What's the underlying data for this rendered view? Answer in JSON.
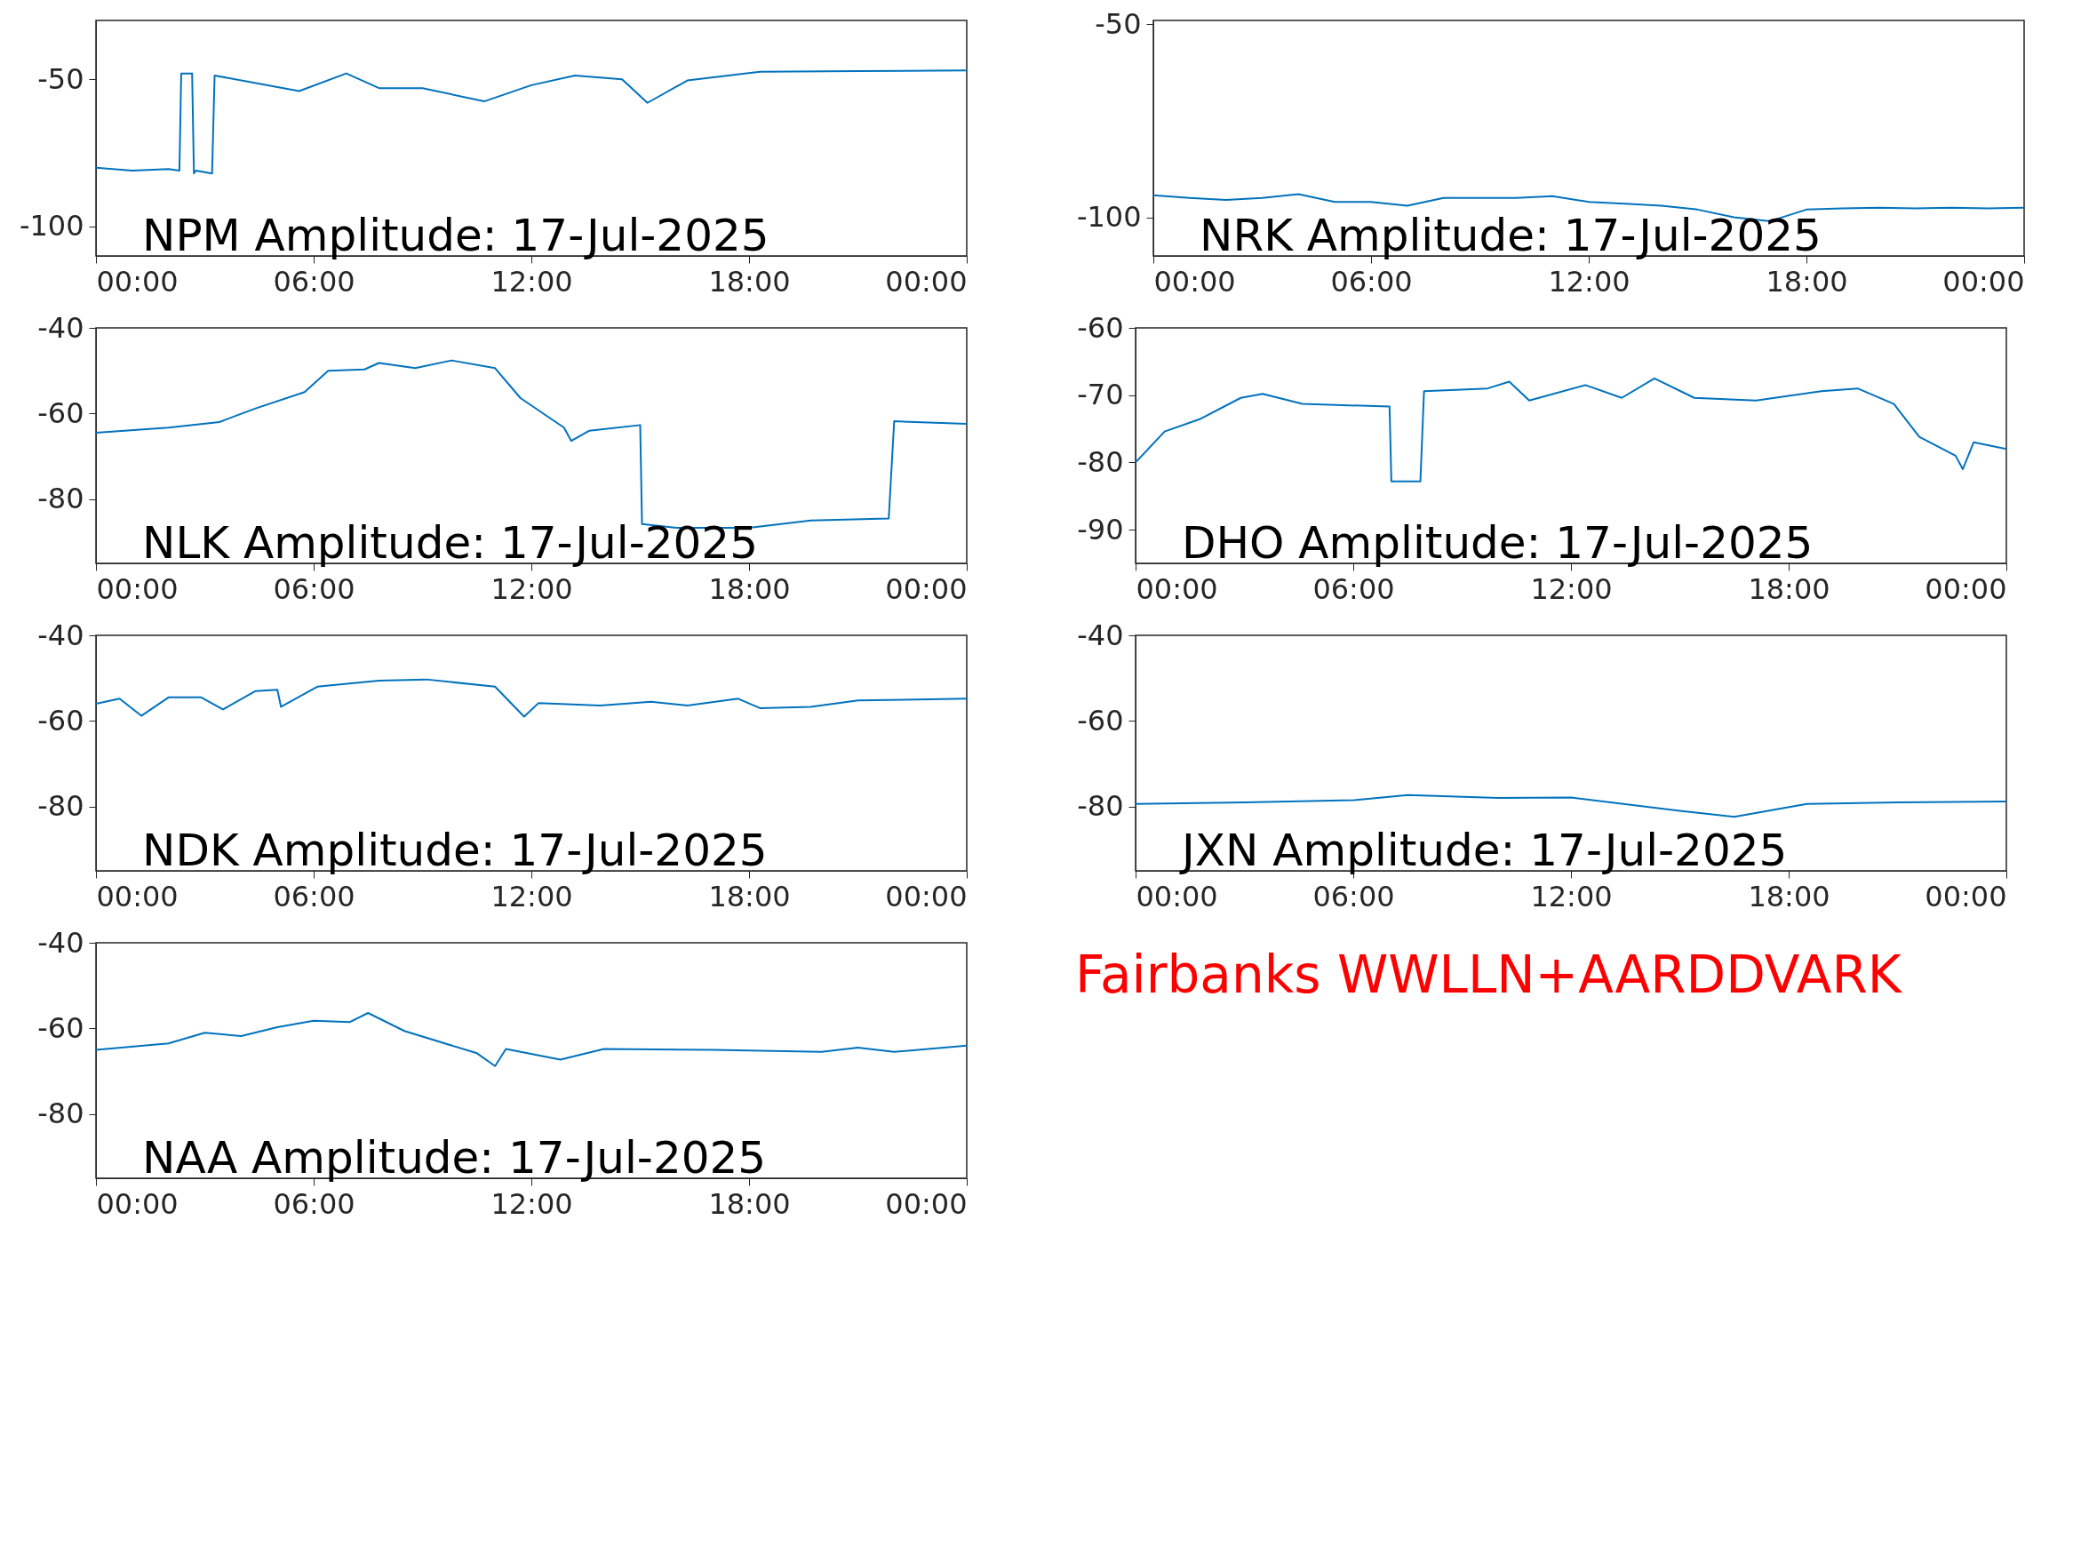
{
  "chart_data": [
    {
      "type": "line",
      "title": "NPM Amplitude: 17-Jul-2025",
      "x": [
        0,
        1,
        2,
        2.3,
        2.35,
        2.65,
        2.7,
        2.75,
        3.2,
        3.27,
        5.6,
        6.9,
        7.8,
        9,
        10.7,
        12,
        13.2,
        14.5,
        15.2,
        16.3,
        18.3,
        21,
        24
      ],
      "xlim": [
        0,
        24
      ],
      "xticks": [
        {
          "value": 0,
          "label": "00:00"
        },
        {
          "value": 6,
          "label": "06:00"
        },
        {
          "value": 12,
          "label": "12:00"
        },
        {
          "value": 18,
          "label": "18:00"
        },
        {
          "value": 24,
          "label": "00:00"
        }
      ],
      "ylim": [
        -110,
        -30
      ],
      "yticks": [
        -100,
        -50
      ],
      "series": [
        {
          "color": "#0072bd",
          "values": [
            -80,
            -81,
            -80.5,
            -81,
            -48,
            -48,
            -82,
            -81,
            -82,
            -48.7,
            -54,
            -48,
            -53,
            -53,
            -57.5,
            -52,
            -48.7,
            -50,
            -58,
            -50.4,
            -47.4,
            -47.2,
            -47
          ]
        }
      ]
    },
    {
      "type": "line",
      "title": "NRK Amplitude: 17-Jul-2025",
      "x": [
        0,
        1,
        2,
        3,
        4,
        5,
        6,
        7,
        8,
        9,
        10,
        11,
        12,
        13,
        14,
        15,
        16,
        17,
        18,
        19,
        20,
        21,
        22,
        23,
        24
      ],
      "xlim": [
        0,
        24
      ],
      "xticks": [
        {
          "value": 0,
          "label": "00:00"
        },
        {
          "value": 6,
          "label": "06:00"
        },
        {
          "value": 12,
          "label": "12:00"
        },
        {
          "value": 18,
          "label": "18:00"
        },
        {
          "value": 24,
          "label": "00:00"
        }
      ],
      "ylim": [
        -110,
        -49
      ],
      "yticks": [
        -100,
        -50
      ],
      "series": [
        {
          "color": "#0072bd",
          "values": [
            -94.3,
            -95,
            -95.5,
            -95,
            -94,
            -96,
            -96,
            -97,
            -95,
            -95,
            -95,
            -94.5,
            -96,
            -96.5,
            -97,
            -98,
            -100,
            -101,
            -98,
            -97.7,
            -97.5,
            -97.7,
            -97.5,
            -97.7,
            -97.5
          ]
        }
      ]
    },
    {
      "type": "line",
      "title": "NLK Amplitude: 17-Jul-2025",
      "x": [
        0,
        2,
        3.4,
        4.4,
        5.75,
        6.4,
        7.4,
        7.8,
        8.8,
        9.8,
        11,
        11.7,
        12.9,
        13.1,
        13.6,
        15,
        15.05,
        16,
        18,
        19.7,
        21.85,
        22,
        24
      ],
      "xlim": [
        0,
        24
      ],
      "xticks": [
        {
          "value": 0,
          "label": "00:00"
        },
        {
          "value": 6,
          "label": "06:00"
        },
        {
          "value": 12,
          "label": "12:00"
        },
        {
          "value": 18,
          "label": "18:00"
        },
        {
          "value": 24,
          "label": "00:00"
        }
      ],
      "ylim": [
        -95,
        -40
      ],
      "yticks": [
        -80,
        -60,
        -40
      ],
      "series": [
        {
          "color": "#0072bd",
          "values": [
            -64.5,
            -63.3,
            -62,
            -58.8,
            -55,
            -50,
            -49.7,
            -48.2,
            -49.4,
            -47.6,
            -49.4,
            -56.4,
            -63.3,
            -66.4,
            -64,
            -62.7,
            -85.8,
            -86.7,
            -86.7,
            -85,
            -84.5,
            -61.8,
            -62.4
          ]
        }
      ]
    },
    {
      "type": "line",
      "title": "DHO Amplitude: 17-Jul-2025",
      "x": [
        0,
        0.8,
        1.8,
        2.9,
        3.5,
        4.6,
        7,
        7.05,
        7.85,
        7.95,
        9.7,
        10.3,
        10.85,
        12.4,
        13.4,
        14.3,
        15.4,
        17.1,
        18.9,
        19.9,
        20.9,
        21.6,
        22.6,
        22.8,
        23.1,
        24
      ],
      "xlim": [
        0,
        24
      ],
      "xticks": [
        {
          "value": 0,
          "label": "00:00"
        },
        {
          "value": 6,
          "label": "06:00"
        },
        {
          "value": 12,
          "label": "12:00"
        },
        {
          "value": 18,
          "label": "18:00"
        },
        {
          "value": 24,
          "label": "00:00"
        }
      ],
      "ylim": [
        -95,
        -60
      ],
      "yticks": [
        -90,
        -80,
        -70,
        -60
      ],
      "series": [
        {
          "color": "#0072bd",
          "values": [
            -80,
            -75.4,
            -73.5,
            -70.4,
            -69.8,
            -71.3,
            -71.7,
            -82.8,
            -82.8,
            -69.4,
            -69,
            -68,
            -70.8,
            -68.5,
            -70.4,
            -67.5,
            -70.4,
            -70.8,
            -69.4,
            -69,
            -71.3,
            -76.2,
            -79,
            -81,
            -77,
            -78
          ]
        }
      ]
    },
    {
      "type": "line",
      "title": "NDK Amplitude: 17-Jul-2025",
      "x": [
        0,
        0.65,
        1.25,
        2,
        2.9,
        3.5,
        4.4,
        5,
        5.1,
        6.1,
        7.8,
        9.1,
        11,
        11.8,
        12.2,
        13.9,
        15.3,
        16.3,
        17.7,
        18.3,
        19.7,
        21,
        24
      ],
      "xlim": [
        0,
        24
      ],
      "xticks": [
        {
          "value": 0,
          "label": "00:00"
        },
        {
          "value": 6,
          "label": "06:00"
        },
        {
          "value": 12,
          "label": "12:00"
        },
        {
          "value": 18,
          "label": "18:00"
        },
        {
          "value": 24,
          "label": "00:00"
        }
      ],
      "ylim": [
        -95,
        -40
      ],
      "yticks": [
        -80,
        -60,
        -40
      ],
      "series": [
        {
          "color": "#0072bd",
          "values": [
            -56,
            -54.8,
            -58.8,
            -54.5,
            -54.5,
            -57.3,
            -53,
            -52.7,
            -56.7,
            -52,
            -50.6,
            -50.3,
            -52,
            -59,
            -55.8,
            -56.4,
            -55.5,
            -56.4,
            -54.8,
            -57,
            -56.7,
            -55.2,
            -54.8
          ]
        }
      ]
    },
    {
      "type": "line",
      "title": "JXN Amplitude: 17-Jul-2025",
      "x": [
        0,
        3,
        6,
        7.5,
        10,
        12,
        15,
        16.5,
        18.5,
        21,
        24
      ],
      "xlim": [
        0,
        24
      ],
      "xticks": [
        {
          "value": 0,
          "label": "00:00"
        },
        {
          "value": 6,
          "label": "06:00"
        },
        {
          "value": 12,
          "label": "12:00"
        },
        {
          "value": 18,
          "label": "18:00"
        },
        {
          "value": 24,
          "label": "00:00"
        }
      ],
      "ylim": [
        -95,
        -40
      ],
      "yticks": [
        -80,
        -60,
        -40
      ],
      "series": [
        {
          "color": "#0072bd",
          "values": [
            -79.4,
            -79,
            -78.5,
            -77.3,
            -78,
            -77.9,
            -81,
            -82.4,
            -79.4,
            -79,
            -78.8
          ]
        }
      ]
    },
    {
      "type": "line",
      "title": "NAA Amplitude: 17-Jul-2025",
      "x": [
        0,
        2,
        3,
        4,
        5,
        6,
        7,
        7.5,
        8.5,
        10.5,
        11,
        11.3,
        12.8,
        14,
        17,
        20,
        21,
        22,
        24
      ],
      "xlim": [
        0,
        24
      ],
      "xticks": [
        {
          "value": 0,
          "label": "00:00"
        },
        {
          "value": 6,
          "label": "06:00"
        },
        {
          "value": 12,
          "label": "12:00"
        },
        {
          "value": 18,
          "label": "18:00"
        },
        {
          "value": 24,
          "label": "00:00"
        }
      ],
      "ylim": [
        -95,
        -40
      ],
      "yticks": [
        -80,
        -60,
        -40
      ],
      "series": [
        {
          "color": "#0072bd",
          "values": [
            -65,
            -63.5,
            -61,
            -61.8,
            -59.7,
            -58.2,
            -58.5,
            -56.4,
            -60.6,
            -65.8,
            -68.8,
            -64.8,
            -67.3,
            -64.8,
            -65,
            -65.5,
            -64.5,
            -65.5,
            -64
          ]
        }
      ]
    },
    {
      "type": "other",
      "title": "Fairbanks WWLLN+AARDDVARK"
    }
  ]
}
